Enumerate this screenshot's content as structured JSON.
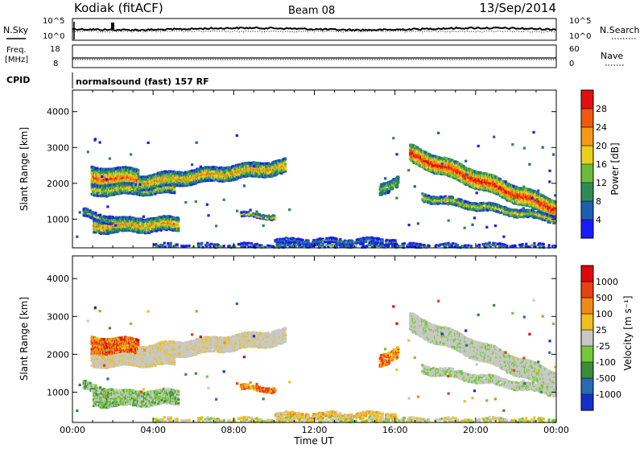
{
  "header": {
    "station": "Kodiak (fitACF)",
    "beam": "Beam 08",
    "date": "13/Sep/2014"
  },
  "top_panels": {
    "nsky_label": "N.Sky",
    "nsearch_label": "N.Search",
    "noise_ticks_left": [
      "10^5",
      "10^0"
    ],
    "noise_ticks_right": [
      "10^5",
      "10^0"
    ],
    "freq_label_top": "Freq.",
    "freq_label_bottom": "[MHz]",
    "freq_ticks": [
      "18",
      "8"
    ],
    "nave_label": "Nave",
    "nave_ticks": [
      "60",
      "0"
    ],
    "cpid_label": "CPID",
    "cpid_text": "normalsound (fast) 157 RF"
  },
  "chart_data": [
    {
      "type": "heatmap",
      "name": "power",
      "xlabel": "",
      "ylabel": "Slant Range [km]",
      "ylim": [
        200,
        4600
      ],
      "yticks": [
        "4000",
        "3000",
        "2000",
        "1000"
      ],
      "xticks": [
        "00:00",
        "04:00",
        "08:00",
        "12:00",
        "16:00",
        "20:00",
        "00:00"
      ],
      "colorbar_label": "Power [dB]",
      "colorbar_ticks": [
        "28",
        "24",
        "20",
        "16",
        "12",
        "8",
        "4"
      ],
      "colors": [
        "#1a1aff",
        "#1e5fb0",
        "#2e8b57",
        "#6dbb3c",
        "#e8d020",
        "#f29a18",
        "#ef5a10",
        "#e01010"
      ]
    },
    {
      "type": "heatmap",
      "name": "velocity",
      "xlabel": "Time UT",
      "ylabel": "Slant Range [km]",
      "ylim": [
        200,
        4600
      ],
      "yticks": [
        "4000",
        "3000",
        "2000",
        "1000"
      ],
      "xticks": [
        "00:00",
        "04:00",
        "08:00",
        "12:00",
        "16:00",
        "20:00",
        "00:00"
      ],
      "colorbar_label": "Velocity [m s⁻¹]",
      "colorbar_ticks": [
        "1000",
        "500",
        "100",
        "25",
        "-25",
        "-100",
        "-500",
        "-1000"
      ],
      "colors": [
        "#1530c8",
        "#2a6ab0",
        "#3c8c3c",
        "#74c83a",
        "#c8c8c4",
        "#f0c020",
        "#ef8a18",
        "#e84010",
        "#dd0808"
      ]
    }
  ]
}
